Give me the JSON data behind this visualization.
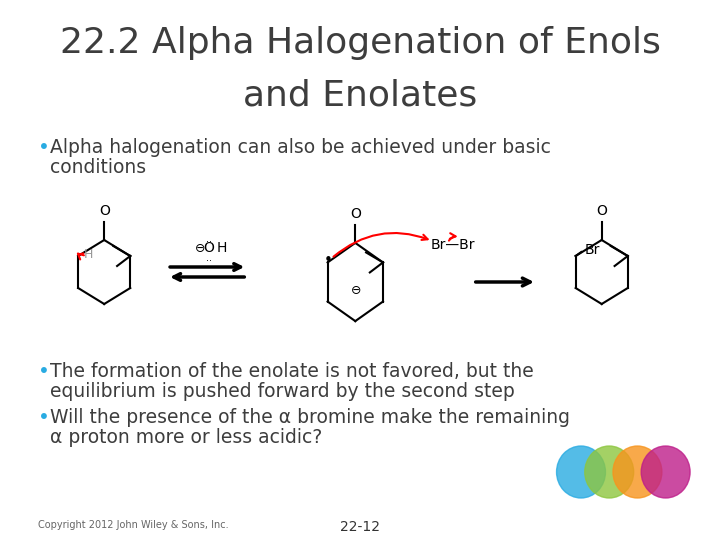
{
  "title_line1": "22.2 Alpha Halogenation of Enols",
  "title_line2": "and Enolates",
  "title_fontsize": 26,
  "title_color": "#3d3d3d",
  "bg_color": "#ffffff",
  "bullet_color": "#3d3d3d",
  "bullet_dot_color": "#29abe2",
  "bullet1_line1": "Alpha halogenation can also be achieved under basic",
  "bullet1_line2": "conditions",
  "bullet2_line1": "The formation of the enolate is not favored, but the",
  "bullet2_line2": "equilibrium is pushed forward by the second step",
  "bullet3_line1": "Will the presence of the α bromine make the remaining",
  "bullet3_line2": "α proton more or less acidic?",
  "bullet_fontsize": 13.5,
  "copyright": "Copyright 2012 John Wiley & Sons, Inc.",
  "page_number": "22-12",
  "footer_fontsize": 7,
  "circle_colors": [
    "#29abe2",
    "#8dc63f",
    "#f7941d",
    "#be1e8a"
  ],
  "circle_alpha": 0.8
}
